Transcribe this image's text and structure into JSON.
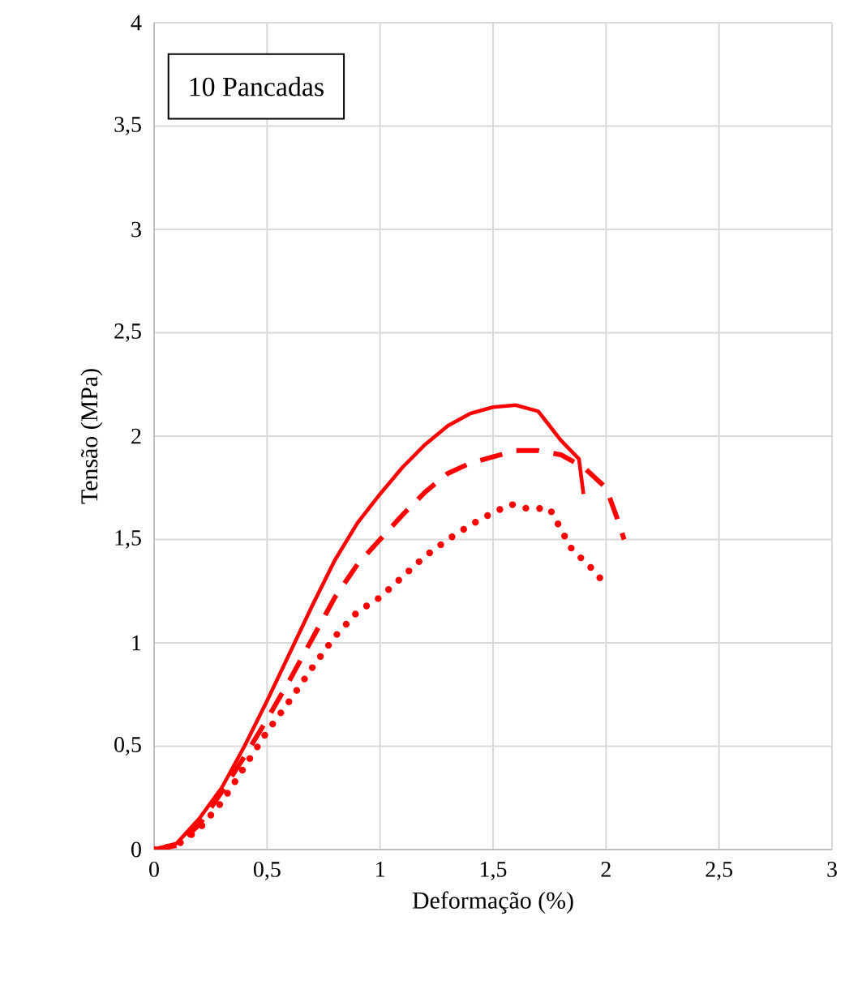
{
  "chart_data": {
    "type": "line",
    "xlabel": "Deformação (%)",
    "ylabel": "Tensão (MPa)",
    "annotations": [
      "10 Pancadas"
    ],
    "xlim": [
      0,
      3
    ],
    "ylim": [
      0,
      4
    ],
    "xticks": [
      0,
      {
        "value": 0.5,
        "label": "0,5"
      },
      1,
      {
        "value": 1.5,
        "label": "1,5"
      },
      2,
      {
        "value": 2.5,
        "label": "2,5"
      },
      3
    ],
    "yticks": [
      0,
      {
        "value": 0.5,
        "label": "0,5"
      },
      1,
      {
        "value": 1.5,
        "label": "1,5"
      },
      2,
      {
        "value": 2.5,
        "label": "2,5"
      },
      3,
      {
        "value": 3.5,
        "label": "3,5"
      },
      4
    ],
    "grid": true,
    "series": [
      {
        "color": "#ff0000",
        "line_style": "solid",
        "x": [
          0,
          0.1,
          0.2,
          0.3,
          0.4,
          0.5,
          0.6,
          0.7,
          0.8,
          0.9,
          1.0,
          1.1,
          1.2,
          1.3,
          1.4,
          1.5,
          1.6,
          1.7,
          1.75,
          1.8,
          1.88,
          1.9
        ],
        "values": [
          0,
          0.03,
          0.15,
          0.3,
          0.5,
          0.72,
          0.95,
          1.18,
          1.4,
          1.58,
          1.72,
          1.85,
          1.96,
          2.05,
          2.11,
          2.14,
          2.15,
          2.12,
          2.05,
          1.98,
          1.89,
          1.72
        ]
      },
      {
        "color": "#ff0000",
        "line_style": "dashed",
        "x": [
          0,
          0.1,
          0.2,
          0.3,
          0.4,
          0.5,
          0.6,
          0.7,
          0.8,
          0.9,
          1.0,
          1.1,
          1.2,
          1.3,
          1.4,
          1.5,
          1.6,
          1.7,
          1.8,
          1.9,
          2.0,
          2.05,
          2.08
        ],
        "values": [
          0,
          0.02,
          0.12,
          0.28,
          0.45,
          0.63,
          0.82,
          1.02,
          1.22,
          1.38,
          1.5,
          1.62,
          1.73,
          1.82,
          1.87,
          1.9,
          1.93,
          1.93,
          1.91,
          1.85,
          1.75,
          1.6,
          1.5
        ]
      },
      {
        "color": "#ff0000",
        "line_style": "dotted",
        "x": [
          0,
          0.1,
          0.2,
          0.3,
          0.4,
          0.5,
          0.6,
          0.7,
          0.8,
          0.9,
          1.0,
          1.1,
          1.2,
          1.3,
          1.4,
          1.5,
          1.58,
          1.65,
          1.75,
          1.8,
          1.85,
          1.92,
          2.0
        ],
        "values": [
          0,
          0.02,
          0.1,
          0.23,
          0.4,
          0.57,
          0.72,
          0.88,
          1.03,
          1.15,
          1.22,
          1.32,
          1.42,
          1.5,
          1.57,
          1.63,
          1.67,
          1.65,
          1.65,
          1.55,
          1.45,
          1.38,
          1.28
        ]
      }
    ]
  }
}
